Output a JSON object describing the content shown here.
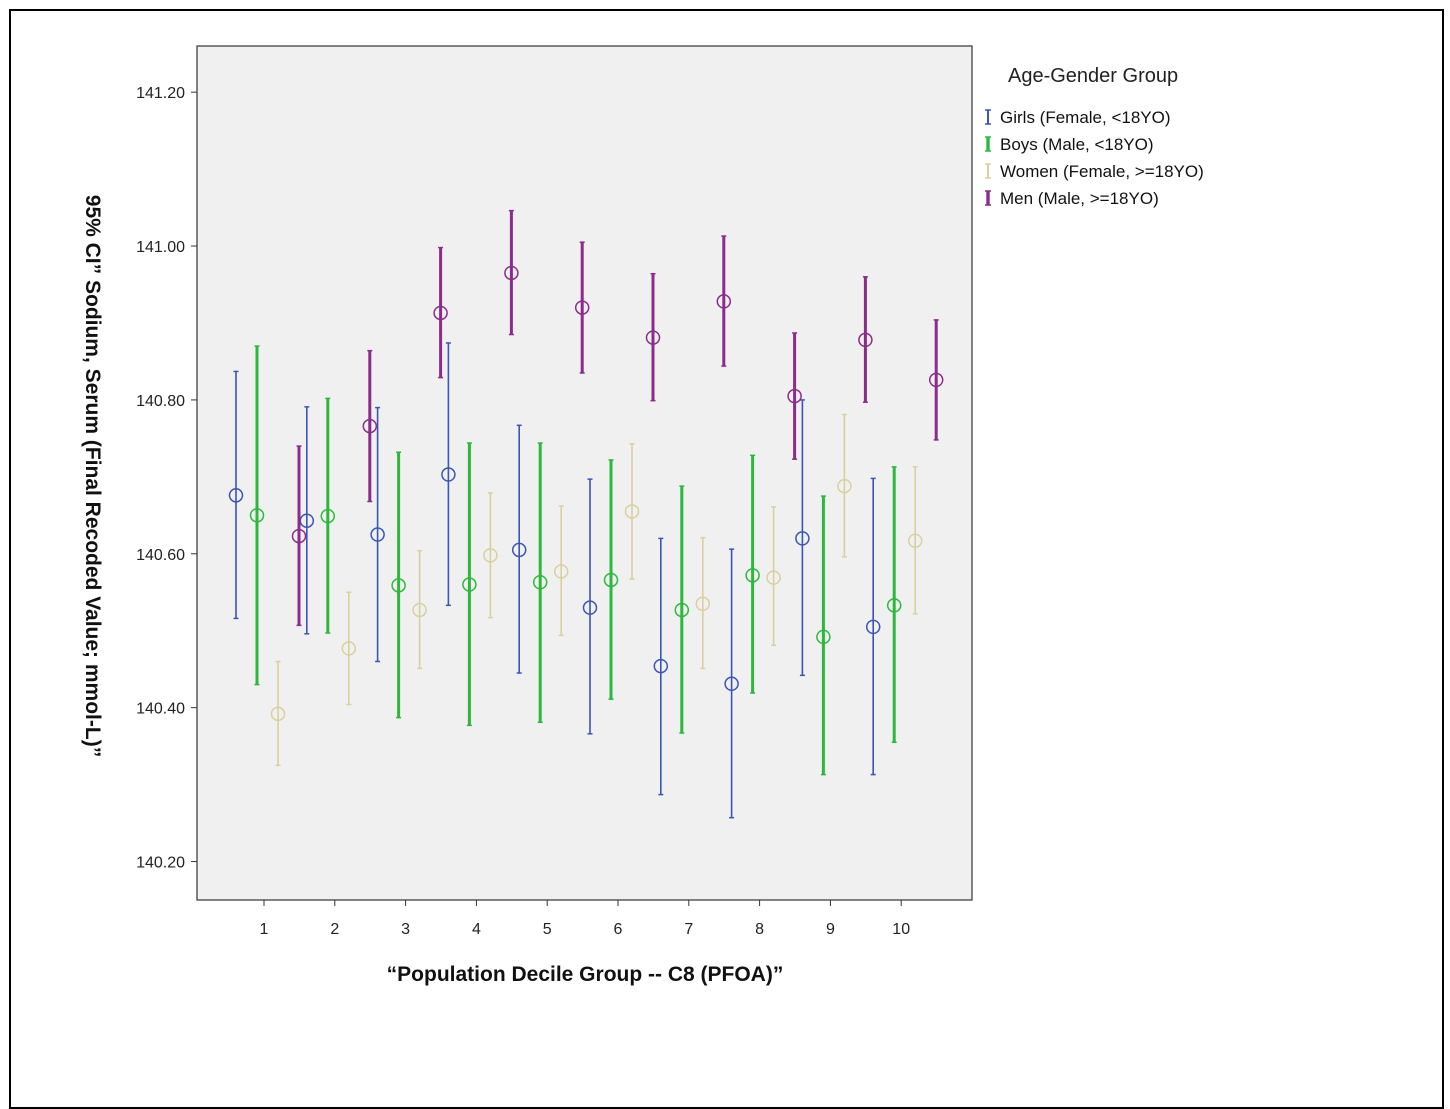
{
  "chart_data": {
    "type": "errorbar",
    "title": "",
    "xlabel": "“Population Decile Group --  C8 (PFOA)”",
    "ylabel": "95% CI” Sodium, Serum (Final Recoded Value; mmol-L)”",
    "ylim": [
      140.15,
      141.26
    ],
    "yticks": [
      "140.20",
      "140.40",
      "140.60",
      "140.80",
      "141.00",
      "141.20"
    ],
    "categories": [
      "1",
      "2",
      "3",
      "4",
      "5",
      "6",
      "7",
      "8",
      "9",
      "10"
    ],
    "grid": false,
    "plot_background": "#f0f0f0",
    "legend": {
      "title": "Age-Gender Group",
      "position": "right"
    },
    "series": [
      {
        "name": "Girls (Female, <18YO)",
        "color": "#3a55b4",
        "mean": [
          140.676,
          140.643,
          140.625,
          140.703,
          140.605,
          140.53,
          140.454,
          140.431,
          140.62,
          140.505
        ],
        "lower": [
          140.516,
          140.496,
          140.46,
          140.533,
          140.445,
          140.366,
          140.287,
          140.257,
          140.442,
          140.313
        ],
        "upper": [
          140.837,
          140.791,
          140.79,
          140.874,
          140.767,
          140.697,
          140.62,
          140.606,
          140.8,
          140.698
        ]
      },
      {
        "name": "Boys (Male, <18YO)",
        "color": "#2db83d",
        "mean": [
          140.65,
          140.649,
          140.559,
          140.56,
          140.563,
          140.566,
          140.527,
          140.572,
          140.492,
          140.533
        ],
        "lower": [
          140.43,
          140.497,
          140.387,
          140.377,
          140.381,
          140.411,
          140.367,
          140.419,
          140.313,
          140.355
        ],
        "upper": [
          140.87,
          140.802,
          140.732,
          140.744,
          140.744,
          140.722,
          140.688,
          140.728,
          140.675,
          140.713
        ]
      },
      {
        "name": "Women (Female, >=18YO)",
        "color": "#d9d0a0",
        "mean": [
          140.392,
          140.477,
          140.527,
          140.598,
          140.577,
          140.655,
          140.535,
          140.569,
          140.688,
          140.617
        ],
        "lower": [
          140.325,
          140.404,
          140.451,
          140.517,
          140.494,
          140.567,
          140.451,
          140.481,
          140.596,
          140.522
        ],
        "upper": [
          140.46,
          140.55,
          140.604,
          140.679,
          140.662,
          140.743,
          140.621,
          140.661,
          140.781,
          140.713
        ]
      },
      {
        "name": "Men (Male, >=18YO)",
        "color": "#8b2c8b",
        "mean": [
          140.623,
          140.766,
          140.913,
          140.965,
          140.92,
          140.881,
          140.928,
          140.805,
          140.878,
          140.826
        ],
        "lower": [
          140.507,
          140.668,
          140.829,
          140.885,
          140.835,
          140.799,
          140.844,
          140.723,
          140.797,
          140.748
        ],
        "upper": [
          140.74,
          140.864,
          140.998,
          141.046,
          141.005,
          140.964,
          141.013,
          140.887,
          140.96,
          140.904
        ]
      }
    ]
  }
}
